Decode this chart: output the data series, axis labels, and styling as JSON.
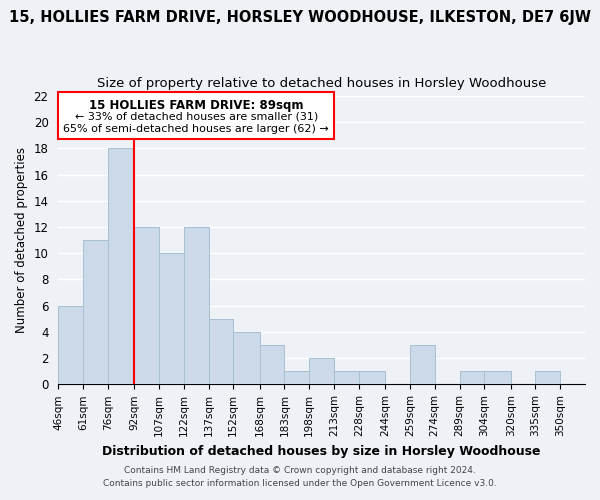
{
  "title": "15, HOLLIES FARM DRIVE, HORSLEY WOODHOUSE, ILKESTON, DE7 6JW",
  "subtitle": "Size of property relative to detached houses in Horsley Woodhouse",
  "xlabel": "Distribution of detached houses by size in Horsley Woodhouse",
  "ylabel": "Number of detached properties",
  "bin_labels": [
    "46sqm",
    "61sqm",
    "76sqm",
    "92sqm",
    "107sqm",
    "122sqm",
    "137sqm",
    "152sqm",
    "168sqm",
    "183sqm",
    "198sqm",
    "213sqm",
    "228sqm",
    "244sqm",
    "259sqm",
    "274sqm",
    "289sqm",
    "304sqm",
    "320sqm",
    "335sqm",
    "350sqm"
  ],
  "bin_edges": [
    46,
    61,
    76,
    92,
    107,
    122,
    137,
    152,
    168,
    183,
    198,
    213,
    228,
    244,
    259,
    274,
    289,
    304,
    320,
    335,
    350
  ],
  "bar_heights": [
    6,
    11,
    18,
    12,
    10,
    12,
    5,
    4,
    3,
    1,
    2,
    1,
    1,
    0,
    3,
    0,
    1,
    1,
    0,
    1
  ],
  "bar_color": "#ccd9e8",
  "bar_edge_color": "#a8bfd0",
  "ylim": [
    0,
    22
  ],
  "yticks": [
    0,
    2,
    4,
    6,
    8,
    10,
    12,
    14,
    16,
    18,
    20,
    22
  ],
  "annotation_title": "15 HOLLIES FARM DRIVE: 89sqm",
  "annotation_line1": "← 33% of detached houses are smaller (31)",
  "annotation_line2": "65% of semi-detached houses are larger (62) →",
  "footer1": "Contains HM Land Registry data © Crown copyright and database right 2024.",
  "footer2": "Contains public sector information licensed under the Open Government Licence v3.0.",
  "background_color": "#eef2f7",
  "grid_color": "#ffffff",
  "title_fontsize": 10.5,
  "subtitle_fontsize": 9.5
}
